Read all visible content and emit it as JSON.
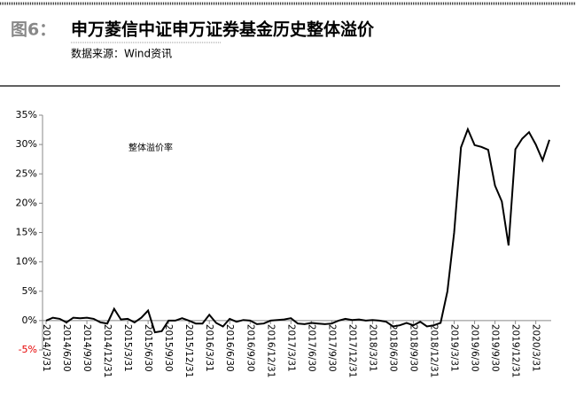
{
  "header": {
    "figure_label": "图6：",
    "title": "申万菱信中证申万证券基金历史整体溢价",
    "source": "数据来源：Wind资讯"
  },
  "chart_data": {
    "type": "line",
    "categories": [
      "2014/3/31",
      null,
      null,
      "2014/6/30",
      null,
      null,
      "2014/9/30",
      null,
      null,
      "2014/12/31",
      null,
      null,
      "2015/3/31",
      null,
      null,
      "2015/6/30",
      null,
      null,
      "2015/9/30",
      null,
      null,
      "2015/12/31",
      null,
      null,
      "2016/3/31",
      null,
      null,
      "2016/6/30",
      null,
      null,
      "2016/9/30",
      null,
      null,
      "2016/12/31",
      null,
      null,
      "2017/3/31",
      null,
      null,
      "2017/6/30",
      null,
      null,
      "2017/9/30",
      null,
      null,
      "2017/12/31",
      null,
      null,
      "2018/3/31",
      null,
      null,
      "2018/6/30",
      null,
      null,
      "2018/9/30",
      null,
      null,
      "2018/12/31",
      null,
      null,
      "2019/3/31",
      null,
      null,
      "2019/6/30",
      null,
      null,
      "2019/9/30",
      null,
      null,
      "2019/12/31",
      null,
      null,
      "2020/3/31",
      null,
      null
    ],
    "series": [
      {
        "name": "整体溢价率",
        "color": "#000000",
        "values": [
          0.0,
          0.5,
          0.3,
          -0.3,
          0.5,
          0.4,
          0.5,
          0.3,
          -0.3,
          -0.5,
          2.0,
          0.2,
          0.3,
          -0.3,
          0.5,
          1.7,
          -2.0,
          -1.8,
          0.0,
          0.0,
          0.4,
          0.0,
          -0.5,
          -0.5,
          1.0,
          -0.4,
          -1.0,
          0.3,
          -0.2,
          0.1,
          0.0,
          -0.6,
          -0.5,
          0.0,
          0.1,
          0.2,
          0.4,
          -0.5,
          -0.6,
          -0.4,
          -0.5,
          -0.6,
          -0.5,
          0.0,
          0.3,
          0.1,
          0.2,
          0.0,
          0.1,
          0.0,
          -0.2,
          -1.0,
          -0.8,
          -0.4,
          -0.8,
          -0.2,
          -1.0,
          -0.8,
          -0.4,
          5.0,
          15.0,
          29.5,
          32.6,
          29.9,
          29.6,
          29.1,
          23.0,
          20.3,
          12.8,
          29.2,
          31.0,
          32.1,
          30.0,
          27.3,
          30.8
        ]
      }
    ],
    "ylim": [
      -5,
      35
    ],
    "yticks": [
      {
        "value": -5,
        "label": "-5%"
      },
      {
        "value": 0,
        "label": "0%"
      },
      {
        "value": 5,
        "label": "5%"
      },
      {
        "value": 10,
        "label": "10%"
      },
      {
        "value": 15,
        "label": "15%"
      },
      {
        "value": 20,
        "label": "20%"
      },
      {
        "value": 25,
        "label": "25%"
      },
      {
        "value": 30,
        "label": "30%"
      },
      {
        "value": 35,
        "label": "35%"
      }
    ],
    "negative_tick_color": "#e60000",
    "grid": false
  }
}
